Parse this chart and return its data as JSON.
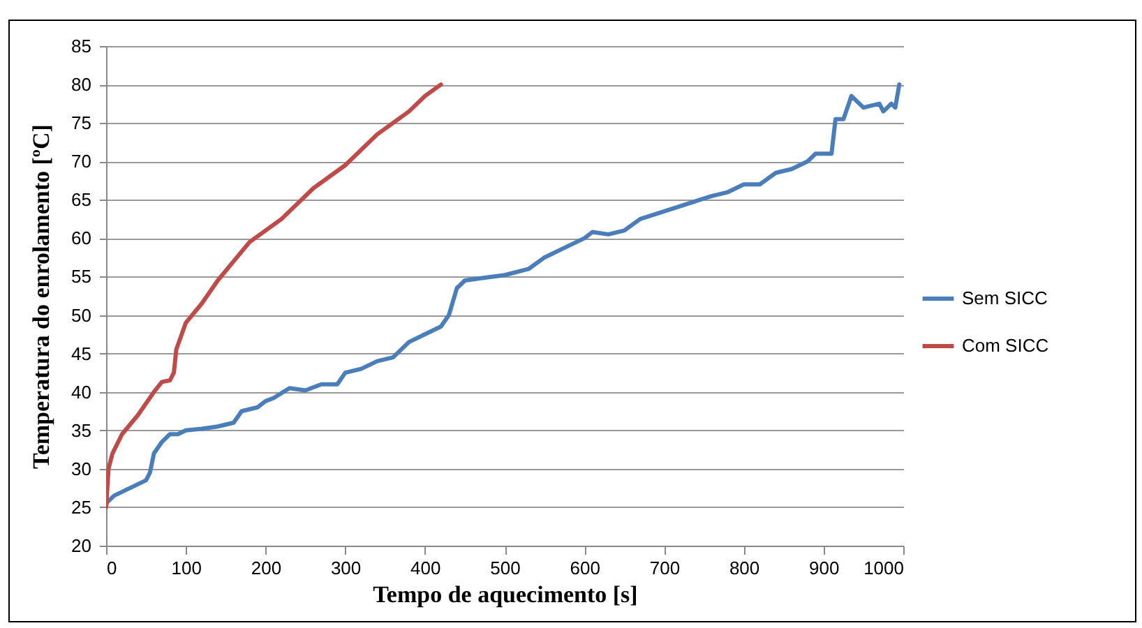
{
  "chart_data": {
    "type": "line",
    "xlabel": "Tempo de aquecimento [s]",
    "ylabel": "Temperatura do enrolamento [ºC]",
    "xlim": [
      0,
      1000
    ],
    "xticks": [
      0,
      100,
      200,
      300,
      400,
      500,
      600,
      700,
      800,
      900,
      1000
    ],
    "ylim": [
      20,
      85
    ],
    "yticks": [
      20,
      25,
      30,
      35,
      40,
      45,
      50,
      55,
      60,
      65,
      70,
      75,
      80,
      85
    ],
    "grid": "y",
    "legend": "right",
    "marker": "none",
    "line_style": "solid",
    "series": [
      {
        "name": "Sem SICC",
        "color": "#4a7ebb",
        "x": [
          0,
          10,
          20,
          30,
          40,
          50,
          55,
          60,
          70,
          80,
          90,
          100,
          120,
          140,
          160,
          170,
          190,
          200,
          210,
          230,
          250,
          270,
          290,
          300,
          320,
          340,
          360,
          380,
          400,
          420,
          430,
          440,
          450,
          470,
          500,
          530,
          550,
          570,
          600,
          610,
          630,
          650,
          670,
          700,
          730,
          760,
          780,
          800,
          820,
          840,
          860,
          880,
          890,
          910,
          915,
          925,
          935,
          950,
          970,
          975,
          985,
          990,
          995
        ],
        "values": [
          25.5,
          26.5,
          27,
          27.5,
          28,
          28.5,
          29.5,
          32,
          33.5,
          34.5,
          34.5,
          35,
          35.2,
          35.5,
          36,
          37.5,
          38,
          38.8,
          39.2,
          40.5,
          40.2,
          41,
          41,
          42.5,
          43,
          44,
          44.5,
          46.5,
          47.5,
          48.5,
          50,
          53.5,
          54.5,
          54.8,
          55.2,
          56,
          57.5,
          58.5,
          60,
          60.8,
          60.5,
          61,
          62.5,
          63.5,
          64.5,
          65.5,
          66,
          67,
          67,
          68.5,
          69,
          70,
          71,
          71,
          75.5,
          75.5,
          78.5,
          77,
          77.5,
          76.5,
          77.5,
          77,
          80
        ]
      },
      {
        "name": "Com SICC",
        "color": "#be4b48",
        "x": [
          0,
          3,
          8,
          20,
          40,
          60,
          70,
          80,
          85,
          88,
          100,
          120,
          140,
          160,
          180,
          200,
          220,
          240,
          260,
          280,
          300,
          320,
          340,
          360,
          380,
          400,
          420
        ],
        "values": [
          25,
          30,
          32,
          34.5,
          37,
          40,
          41.3,
          41.5,
          42.5,
          45.5,
          49,
          51.5,
          54.5,
          57,
          59.5,
          61,
          62.5,
          64.5,
          66.5,
          68,
          69.5,
          71.5,
          73.5,
          75,
          76.5,
          78.5,
          80
        ]
      }
    ]
  }
}
